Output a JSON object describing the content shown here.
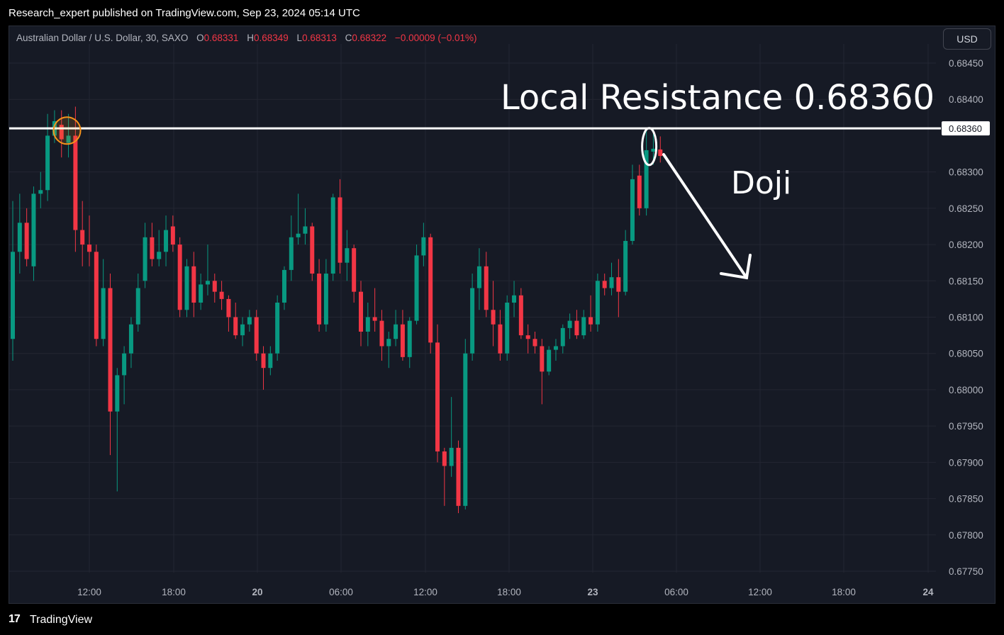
{
  "header": {
    "published": "Research_expert published on TradingView.com, Sep 23, 2024 05:14 UTC"
  },
  "legend": {
    "symbol": "Australian Dollar / U.S. Dollar, 30, SAXO",
    "open_label": "O",
    "open": "0.68331",
    "high_label": "H",
    "high": "0.68349",
    "low_label": "L",
    "low": "0.68313",
    "close_label": "C",
    "close": "0.68322",
    "change": "−0.00009 (−0.01%)"
  },
  "currency_button": "USD",
  "footer": {
    "logo_glyph": "17",
    "brand": "TradingView"
  },
  "colors": {
    "up": "#089981",
    "down": "#f23645",
    "background": "#161a25",
    "grid": "#232632",
    "annotation": "#ffffff",
    "marker": "#f7931a"
  },
  "chart_data": {
    "type": "candlestick",
    "interval": "30",
    "y_axis_ticks": [
      "0.68450",
      "0.68400",
      "0.68360",
      "0.68300",
      "0.68250",
      "0.68200",
      "0.68150",
      "0.68100",
      "0.68050",
      "0.68000",
      "0.67950",
      "0.67900",
      "0.67850",
      "0.67800",
      "0.67750"
    ],
    "ylim": [
      0.6774,
      0.6848
    ],
    "x_axis_ticks": [
      "12:00",
      "18:00",
      "20",
      "06:00",
      "12:00",
      "18:00",
      "23",
      "06:00",
      "12:00",
      "18:00",
      "24"
    ],
    "grid": true,
    "resistance": {
      "value": 0.6836,
      "label": "0.68360"
    },
    "annotations": {
      "resistance_text": "Local Resistance 0.68360",
      "doji_text": "Doji"
    },
    "candles": [
      {
        "o": 0.6807,
        "h": 0.6826,
        "l": 0.6804,
        "c": 0.6819
      },
      {
        "o": 0.6819,
        "h": 0.6827,
        "l": 0.6816,
        "c": 0.6823
      },
      {
        "o": 0.6823,
        "h": 0.6825,
        "l": 0.6817,
        "c": 0.6818
      },
      {
        "o": 0.6817,
        "h": 0.6828,
        "l": 0.6815,
        "c": 0.6827
      },
      {
        "o": 0.6827,
        "h": 0.683,
        "l": 0.6825,
        "c": 0.68275
      },
      {
        "o": 0.68275,
        "h": 0.6838,
        "l": 0.6826,
        "c": 0.6835
      },
      {
        "o": 0.6835,
        "h": 0.68385,
        "l": 0.6834,
        "c": 0.6837
      },
      {
        "o": 0.68365,
        "h": 0.68385,
        "l": 0.6832,
        "c": 0.68345
      },
      {
        "o": 0.6834,
        "h": 0.6838,
        "l": 0.6832,
        "c": 0.6835
      },
      {
        "o": 0.6835,
        "h": 0.6839,
        "l": 0.6819,
        "c": 0.6822
      },
      {
        "o": 0.6822,
        "h": 0.6826,
        "l": 0.6817,
        "c": 0.682
      },
      {
        "o": 0.682,
        "h": 0.6824,
        "l": 0.6817,
        "c": 0.6819
      },
      {
        "o": 0.6819,
        "h": 0.682,
        "l": 0.6806,
        "c": 0.6807
      },
      {
        "o": 0.6807,
        "h": 0.6818,
        "l": 0.6806,
        "c": 0.6814
      },
      {
        "o": 0.6814,
        "h": 0.6816,
        "l": 0.6791,
        "c": 0.6797
      },
      {
        "o": 0.6797,
        "h": 0.6803,
        "l": 0.6786,
        "c": 0.6802
      },
      {
        "o": 0.6802,
        "h": 0.6806,
        "l": 0.6798,
        "c": 0.6805
      },
      {
        "o": 0.6805,
        "h": 0.681,
        "l": 0.6803,
        "c": 0.6809
      },
      {
        "o": 0.6809,
        "h": 0.6816,
        "l": 0.6808,
        "c": 0.6814
      },
      {
        "o": 0.6815,
        "h": 0.6823,
        "l": 0.6814,
        "c": 0.6821
      },
      {
        "o": 0.6821,
        "h": 0.6823,
        "l": 0.6817,
        "c": 0.6818
      },
      {
        "o": 0.6818,
        "h": 0.6822,
        "l": 0.6817,
        "c": 0.6819
      },
      {
        "o": 0.6819,
        "h": 0.6824,
        "l": 0.6817,
        "c": 0.6822
      },
      {
        "o": 0.68225,
        "h": 0.6824,
        "l": 0.6819,
        "c": 0.682
      },
      {
        "o": 0.682,
        "h": 0.6821,
        "l": 0.681,
        "c": 0.6811
      },
      {
        "o": 0.6811,
        "h": 0.6818,
        "l": 0.681,
        "c": 0.6817
      },
      {
        "o": 0.6817,
        "h": 0.6819,
        "l": 0.681,
        "c": 0.6812
      },
      {
        "o": 0.6812,
        "h": 0.6816,
        "l": 0.6811,
        "c": 0.68145
      },
      {
        "o": 0.68145,
        "h": 0.682,
        "l": 0.6813,
        "c": 0.6815
      },
      {
        "o": 0.6815,
        "h": 0.6816,
        "l": 0.6812,
        "c": 0.68135
      },
      {
        "o": 0.68135,
        "h": 0.6815,
        "l": 0.6811,
        "c": 0.68125
      },
      {
        "o": 0.68125,
        "h": 0.6813,
        "l": 0.6808,
        "c": 0.681
      },
      {
        "o": 0.681,
        "h": 0.6812,
        "l": 0.6807,
        "c": 0.68075
      },
      {
        "o": 0.68075,
        "h": 0.681,
        "l": 0.6806,
        "c": 0.6809
      },
      {
        "o": 0.6809,
        "h": 0.6811,
        "l": 0.6808,
        "c": 0.681
      },
      {
        "o": 0.681,
        "h": 0.6811,
        "l": 0.6804,
        "c": 0.6805
      },
      {
        "o": 0.6805,
        "h": 0.6806,
        "l": 0.68,
        "c": 0.6803
      },
      {
        "o": 0.6803,
        "h": 0.6806,
        "l": 0.6802,
        "c": 0.6805
      },
      {
        "o": 0.6805,
        "h": 0.6813,
        "l": 0.6804,
        "c": 0.6812
      },
      {
        "o": 0.6812,
        "h": 0.6817,
        "l": 0.6811,
        "c": 0.68165
      },
      {
        "o": 0.68165,
        "h": 0.6824,
        "l": 0.6815,
        "c": 0.6821
      },
      {
        "o": 0.6821,
        "h": 0.6827,
        "l": 0.682,
        "c": 0.68215
      },
      {
        "o": 0.68215,
        "h": 0.6825,
        "l": 0.682,
        "c": 0.68225
      },
      {
        "o": 0.68225,
        "h": 0.6823,
        "l": 0.6815,
        "c": 0.6816
      },
      {
        "o": 0.6816,
        "h": 0.6818,
        "l": 0.6808,
        "c": 0.6809
      },
      {
        "o": 0.6809,
        "h": 0.6818,
        "l": 0.6808,
        "c": 0.6816
      },
      {
        "o": 0.6816,
        "h": 0.6827,
        "l": 0.6815,
        "c": 0.68265
      },
      {
        "o": 0.68265,
        "h": 0.6829,
        "l": 0.6816,
        "c": 0.68175
      },
      {
        "o": 0.68175,
        "h": 0.6822,
        "l": 0.6815,
        "c": 0.68195
      },
      {
        "o": 0.68195,
        "h": 0.682,
        "l": 0.6812,
        "c": 0.68135
      },
      {
        "o": 0.68135,
        "h": 0.6815,
        "l": 0.6806,
        "c": 0.6808
      },
      {
        "o": 0.6808,
        "h": 0.6812,
        "l": 0.6806,
        "c": 0.681
      },
      {
        "o": 0.681,
        "h": 0.6814,
        "l": 0.6808,
        "c": 0.68095
      },
      {
        "o": 0.68095,
        "h": 0.6811,
        "l": 0.6804,
        "c": 0.6806
      },
      {
        "o": 0.6806,
        "h": 0.6808,
        "l": 0.6803,
        "c": 0.6807
      },
      {
        "o": 0.6807,
        "h": 0.6811,
        "l": 0.6806,
        "c": 0.6809
      },
      {
        "o": 0.6809,
        "h": 0.6811,
        "l": 0.6804,
        "c": 0.68045
      },
      {
        "o": 0.68045,
        "h": 0.681,
        "l": 0.6803,
        "c": 0.68095
      },
      {
        "o": 0.68095,
        "h": 0.682,
        "l": 0.6809,
        "c": 0.68185
      },
      {
        "o": 0.68185,
        "h": 0.6823,
        "l": 0.6817,
        "c": 0.6821
      },
      {
        "o": 0.6821,
        "h": 0.68215,
        "l": 0.6805,
        "c": 0.68065
      },
      {
        "o": 0.68065,
        "h": 0.6809,
        "l": 0.679,
        "c": 0.67915
      },
      {
        "o": 0.67915,
        "h": 0.6792,
        "l": 0.6784,
        "c": 0.67895
      },
      {
        "o": 0.67895,
        "h": 0.6799,
        "l": 0.6788,
        "c": 0.6792
      },
      {
        "o": 0.6792,
        "h": 0.6793,
        "l": 0.6783,
        "c": 0.6784
      },
      {
        "o": 0.6784,
        "h": 0.6807,
        "l": 0.67835,
        "c": 0.6805
      },
      {
        "o": 0.6805,
        "h": 0.6816,
        "l": 0.6804,
        "c": 0.6814
      },
      {
        "o": 0.6814,
        "h": 0.68195,
        "l": 0.6811,
        "c": 0.6817
      },
      {
        "o": 0.6817,
        "h": 0.6819,
        "l": 0.681,
        "c": 0.6811
      },
      {
        "o": 0.6811,
        "h": 0.6815,
        "l": 0.6806,
        "c": 0.6809
      },
      {
        "o": 0.6809,
        "h": 0.6811,
        "l": 0.6804,
        "c": 0.6805
      },
      {
        "o": 0.6805,
        "h": 0.6813,
        "l": 0.6804,
        "c": 0.6812
      },
      {
        "o": 0.6812,
        "h": 0.6815,
        "l": 0.681,
        "c": 0.6813
      },
      {
        "o": 0.6813,
        "h": 0.6814,
        "l": 0.6807,
        "c": 0.68075
      },
      {
        "o": 0.68075,
        "h": 0.6809,
        "l": 0.6805,
        "c": 0.6807
      },
      {
        "o": 0.6807,
        "h": 0.6808,
        "l": 0.6805,
        "c": 0.6806
      },
      {
        "o": 0.6806,
        "h": 0.6807,
        "l": 0.6798,
        "c": 0.68025
      },
      {
        "o": 0.68025,
        "h": 0.6806,
        "l": 0.6802,
        "c": 0.68055
      },
      {
        "o": 0.68055,
        "h": 0.6807,
        "l": 0.6804,
        "c": 0.6806
      },
      {
        "o": 0.6806,
        "h": 0.6809,
        "l": 0.6805,
        "c": 0.68085
      },
      {
        "o": 0.68085,
        "h": 0.68105,
        "l": 0.6807,
        "c": 0.68095
      },
      {
        "o": 0.68095,
        "h": 0.6811,
        "l": 0.6807,
        "c": 0.68075
      },
      {
        "o": 0.68075,
        "h": 0.6811,
        "l": 0.6807,
        "c": 0.681
      },
      {
        "o": 0.681,
        "h": 0.6813,
        "l": 0.6808,
        "c": 0.6809
      },
      {
        "o": 0.6809,
        "h": 0.6816,
        "l": 0.6808,
        "c": 0.6815
      },
      {
        "o": 0.6815,
        "h": 0.6816,
        "l": 0.6813,
        "c": 0.6814
      },
      {
        "o": 0.6814,
        "h": 0.68175,
        "l": 0.6813,
        "c": 0.68155
      },
      {
        "o": 0.68155,
        "h": 0.6818,
        "l": 0.681,
        "c": 0.68135
      },
      {
        "o": 0.68135,
        "h": 0.6822,
        "l": 0.6813,
        "c": 0.68205
      },
      {
        "o": 0.68205,
        "h": 0.6831,
        "l": 0.682,
        "c": 0.6829
      },
      {
        "o": 0.68295,
        "h": 0.6831,
        "l": 0.6824,
        "c": 0.6825
      },
      {
        "o": 0.6825,
        "h": 0.6836,
        "l": 0.6824,
        "c": 0.6833
      },
      {
        "o": 0.68328,
        "h": 0.6836,
        "l": 0.6831,
        "c": 0.68332
      },
      {
        "o": 0.68331,
        "h": 0.68349,
        "l": 0.68313,
        "c": 0.68322
      }
    ]
  }
}
